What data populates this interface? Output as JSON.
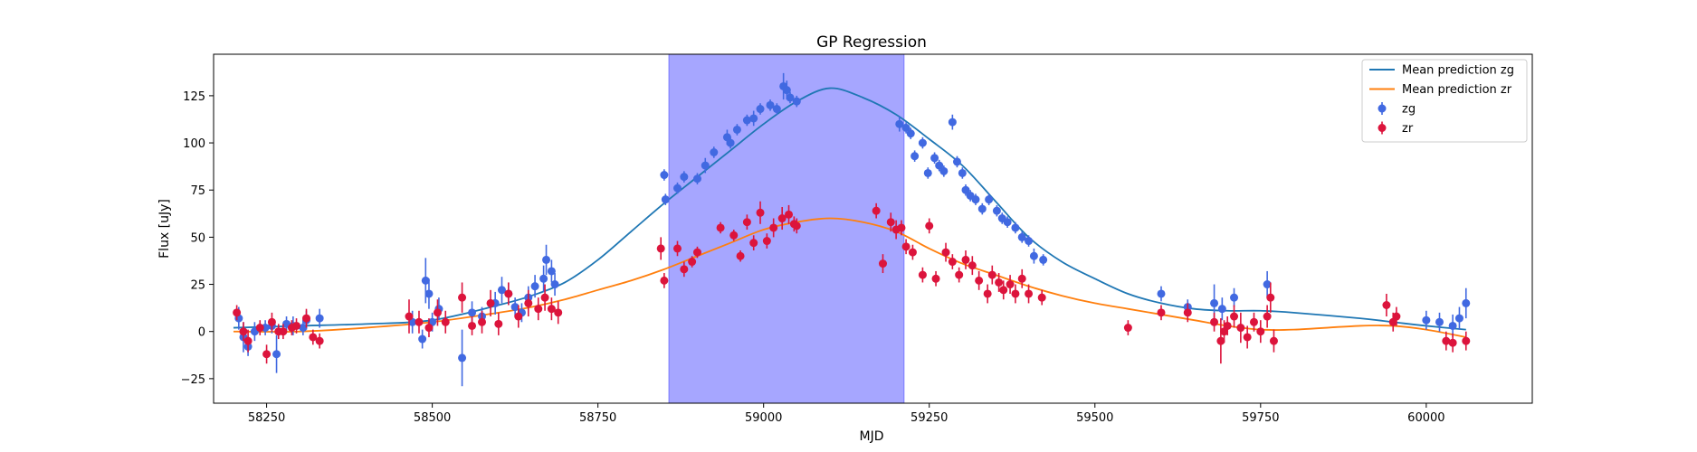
{
  "chart_data": {
    "type": "scatter",
    "title": "GP Regression",
    "xlabel": "MJD",
    "ylabel": "Flux [uJy]",
    "xlim": [
      58170,
      60160
    ],
    "ylim": [
      -38,
      147
    ],
    "xticks": [
      58250,
      58500,
      58750,
      59000,
      59250,
      59500,
      59750,
      60000
    ],
    "yticks": [
      -25,
      0,
      25,
      50,
      75,
      100,
      125
    ],
    "highlight_span": [
      58857,
      59212
    ],
    "colors": {
      "zg_line": "#1f77b4",
      "zr_line": "#ff7f0e",
      "zg_points": "#4169e1",
      "zr_points": "#dc143c",
      "span": "#6666ff"
    },
    "legend_position": "top-right",
    "legend": [
      {
        "label": "Mean prediction zg",
        "kind": "line",
        "color": "#1f77b4"
      },
      {
        "label": "Mean prediction zr",
        "kind": "line",
        "color": "#ff7f0e"
      },
      {
        "label": "zg",
        "kind": "marker",
        "color": "#4169e1"
      },
      {
        "label": "zr",
        "kind": "marker",
        "color": "#dc143c"
      }
    ],
    "series": [
      {
        "name": "Mean prediction zg",
        "kind": "line",
        "x": [
          58200,
          58300,
          58400,
          58500,
          58600,
          58650,
          58700,
          58750,
          58800,
          58850,
          58900,
          58950,
          59000,
          59050,
          59100,
          59150,
          59200,
          59250,
          59300,
          59350,
          59400,
          59450,
          59500,
          59550,
          59600,
          59650,
          59700,
          59750,
          59800,
          59900,
          59950,
          60000,
          60060
        ],
        "y": [
          2,
          3,
          4,
          6,
          14,
          19,
          26,
          38,
          53,
          68,
          82,
          96,
          110,
          122,
          129,
          124,
          115,
          102,
          88,
          69,
          50,
          37,
          28,
          20,
          15,
          12,
          11,
          11,
          10,
          7,
          5,
          3,
          1
        ]
      },
      {
        "name": "Mean prediction zr",
        "kind": "line",
        "x": [
          58200,
          58300,
          58400,
          58500,
          58600,
          58650,
          58700,
          58750,
          58800,
          58850,
          58900,
          58950,
          59000,
          59050,
          59100,
          59150,
          59200,
          59250,
          59300,
          59350,
          59400,
          59450,
          59500,
          59550,
          59600,
          59650,
          59700,
          59750,
          59800,
          59900,
          59950,
          60000,
          60060
        ],
        "y": [
          0,
          0,
          2,
          5,
          10,
          13,
          17,
          22,
          27,
          33,
          40,
          47,
          54,
          58,
          60,
          58,
          53,
          44,
          36,
          30,
          24,
          19,
          15,
          12,
          9,
          6,
          3,
          1,
          1,
          3,
          3,
          1,
          -3
        ]
      },
      {
        "name": "zg",
        "kind": "points",
        "x": [
          58208,
          58215,
          58222,
          58232,
          58248,
          58258,
          58265,
          58280,
          58290,
          58305,
          58310,
          58330,
          58470,
          58485,
          58490,
          58495,
          58500,
          58510,
          58545,
          58560,
          58575,
          58595,
          58605,
          58615,
          58625,
          58635,
          58645,
          58655,
          58668,
          58672,
          58680,
          58685,
          58850,
          58852,
          58870,
          58880,
          58900,
          58912,
          58925,
          58945,
          58950,
          58960,
          58975,
          58985,
          58995,
          59010,
          59020,
          59030,
          59035,
          59040,
          59050,
          59205,
          59215,
          59222,
          59228,
          59240,
          59248,
          59258,
          59265,
          59272,
          59285,
          59292,
          59300,
          59305,
          59312,
          59320,
          59330,
          59340,
          59352,
          59360,
          59368,
          59380,
          59390,
          59400,
          59408,
          59422,
          59600,
          59640,
          59680,
          59692,
          59710,
          59760,
          60000,
          60020,
          60040,
          60050,
          60060
        ],
        "y": [
          7,
          -3,
          -8,
          0,
          2,
          3,
          -12,
          4,
          3,
          2,
          6,
          7,
          5,
          -4,
          27,
          20,
          5,
          12,
          -14,
          10,
          8,
          15,
          22,
          20,
          13,
          10,
          18,
          24,
          28,
          38,
          32,
          25,
          83,
          70,
          76,
          82,
          81,
          88,
          95,
          103,
          100,
          107,
          112,
          113,
          118,
          120,
          118,
          130,
          128,
          124,
          122,
          110,
          108,
          105,
          93,
          100,
          84,
          92,
          88,
          85,
          111,
          90,
          84,
          75,
          72,
          70,
          65,
          70,
          64,
          60,
          58,
          55,
          50,
          48,
          40,
          38,
          20,
          13,
          15,
          12,
          18,
          25,
          6,
          5,
          3,
          7,
          15
        ],
        "err": [
          6,
          8,
          5,
          5,
          4,
          4,
          10,
          4,
          5,
          4,
          5,
          5,
          6,
          5,
          12,
          8,
          5,
          6,
          15,
          6,
          5,
          6,
          7,
          6,
          5,
          5,
          6,
          6,
          7,
          8,
          6,
          6,
          3,
          3,
          3,
          3,
          3,
          4,
          3,
          4,
          3,
          3,
          3,
          4,
          3,
          3,
          3,
          7,
          5,
          3,
          3,
          4,
          3,
          3,
          3,
          3,
          3,
          3,
          3,
          3,
          4,
          3,
          3,
          3,
          3,
          3,
          3,
          3,
          3,
          3,
          3,
          3,
          3,
          3,
          4,
          3,
          4,
          4,
          10,
          6,
          5,
          7,
          5,
          5,
          6,
          6,
          8
        ]
      },
      {
        "name": "zr",
        "kind": "points",
        "x": [
          58205,
          58215,
          58222,
          58240,
          58250,
          58258,
          58268,
          58275,
          58288,
          58295,
          58310,
          58320,
          58330,
          58465,
          58480,
          58495,
          58508,
          58520,
          58545,
          58560,
          58575,
          58588,
          58600,
          58615,
          58630,
          58645,
          58660,
          58670,
          58680,
          58690,
          58845,
          58850,
          58870,
          58880,
          58892,
          58900,
          58935,
          58955,
          58965,
          58975,
          58985,
          58995,
          59005,
          59015,
          59028,
          59038,
          59046,
          59050,
          59170,
          59180,
          59192,
          59200,
          59208,
          59215,
          59225,
          59240,
          59250,
          59260,
          59275,
          59285,
          59295,
          59305,
          59315,
          59325,
          59338,
          59345,
          59355,
          59362,
          59372,
          59380,
          59390,
          59400,
          59420,
          59550,
          59600,
          59640,
          59680,
          59690,
          59695,
          59700,
          59710,
          59720,
          59730,
          59740,
          59750,
          59760,
          59765,
          59770,
          59940,
          59950,
          59955,
          60030,
          60040,
          60060
        ],
        "y": [
          10,
          0,
          -5,
          2,
          -12,
          5,
          0,
          0,
          2,
          3,
          7,
          -3,
          -5,
          8,
          5,
          2,
          10,
          5,
          18,
          3,
          5,
          15,
          4,
          20,
          8,
          15,
          12,
          18,
          12,
          10,
          44,
          27,
          44,
          33,
          37,
          42,
          55,
          51,
          40,
          58,
          47,
          63,
          48,
          55,
          60,
          62,
          57,
          56,
          64,
          36,
          58,
          54,
          55,
          45,
          42,
          30,
          56,
          28,
          42,
          37,
          30,
          38,
          35,
          27,
          20,
          30,
          26,
          22,
          25,
          20,
          28,
          20,
          18,
          2,
          10,
          10,
          5,
          -5,
          0,
          3,
          8,
          2,
          -3,
          5,
          0,
          8,
          18,
          -5,
          14,
          5,
          8,
          -5,
          -6,
          -5
        ],
        "err": [
          4,
          5,
          6,
          4,
          5,
          5,
          4,
          4,
          4,
          4,
          5,
          4,
          4,
          9,
          6,
          5,
          7,
          6,
          8,
          5,
          6,
          7,
          6,
          6,
          6,
          7,
          6,
          7,
          6,
          6,
          6,
          4,
          4,
          4,
          3,
          3,
          3,
          3,
          3,
          4,
          4,
          6,
          4,
          5,
          6,
          5,
          4,
          4,
          4,
          5,
          5,
          5,
          4,
          4,
          4,
          4,
          4,
          4,
          5,
          4,
          4,
          5,
          5,
          5,
          5,
          5,
          5,
          5,
          5,
          5,
          5,
          5,
          4,
          4,
          4,
          5,
          5,
          12,
          6,
          5,
          6,
          8,
          6,
          5,
          6,
          6,
          8,
          6,
          6,
          5,
          5,
          5,
          5,
          5
        ]
      }
    ]
  }
}
